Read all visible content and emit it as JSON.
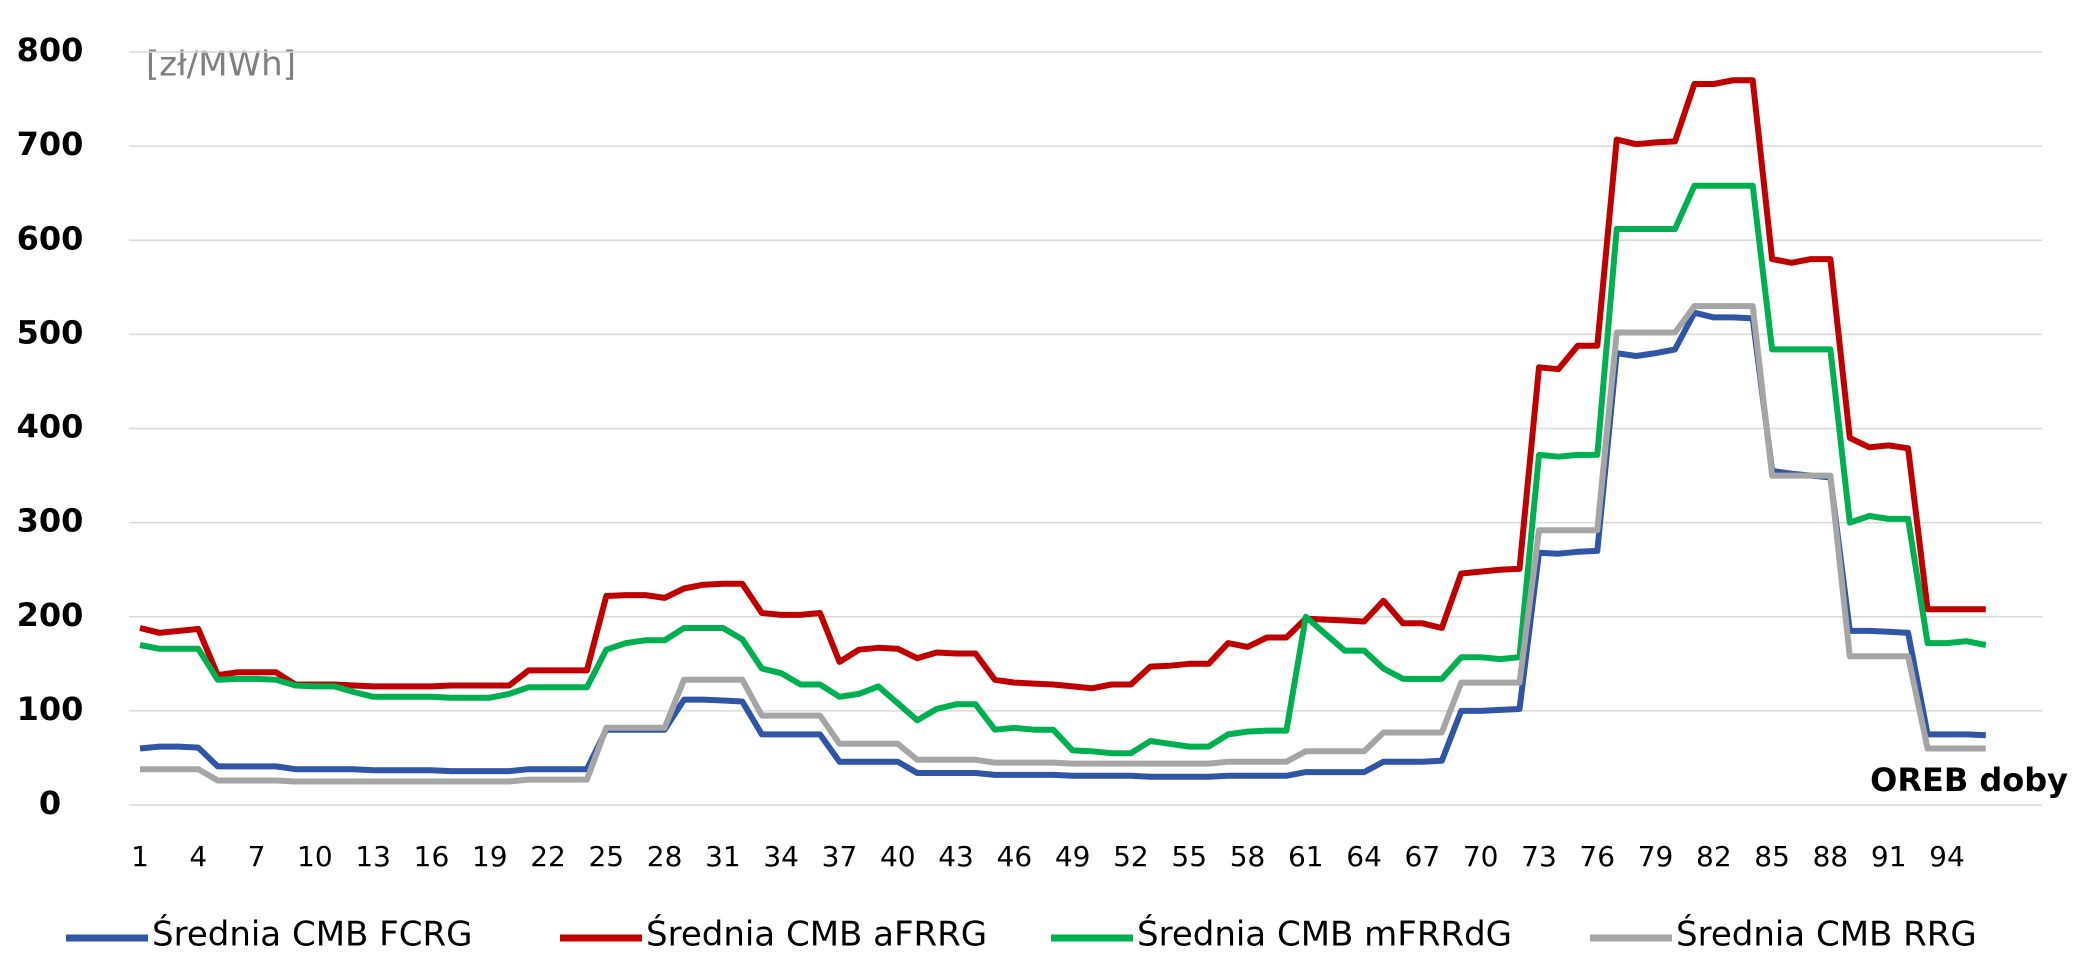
{
  "chart_data": {
    "type": "line",
    "annotations": [
      "[zł/MWh]",
      "OREB doby"
    ],
    "categories": [
      1,
      null,
      null,
      4,
      null,
      null,
      7,
      null,
      null,
      10,
      null,
      null,
      13,
      null,
      null,
      16,
      null,
      null,
      19,
      null,
      null,
      22,
      null,
      null,
      25,
      null,
      null,
      28,
      null,
      null,
      31,
      null,
      null,
      34,
      null,
      null,
      37,
      null,
      null,
      40,
      null,
      null,
      43,
      null,
      null,
      46,
      null,
      null,
      49,
      null,
      null,
      52,
      null,
      null,
      55,
      null,
      null,
      58,
      null,
      null,
      61,
      null,
      null,
      64,
      null,
      null,
      67,
      null,
      null,
      70,
      null,
      null,
      73,
      null,
      null,
      76,
      null,
      null,
      79,
      null,
      null,
      82,
      null,
      null,
      85,
      null,
      null,
      88,
      null,
      null,
      91,
      null,
      null,
      94,
      null,
      null
    ],
    "series": [
      {
        "name": "Średnia CMB FCRG",
        "color": "#2f55a4",
        "values": [
          60,
          62,
          62,
          61,
          41,
          41,
          41,
          41,
          38,
          38,
          38,
          38,
          37,
          37,
          37,
          37,
          36,
          36,
          36,
          36,
          38,
          38,
          38,
          38,
          80,
          80,
          80,
          80,
          112,
          112,
          111,
          110,
          75,
          75,
          75,
          75,
          46,
          46,
          46,
          46,
          34,
          34,
          34,
          34,
          32,
          32,
          32,
          32,
          31,
          31,
          31,
          31,
          30,
          30,
          30,
          30,
          31,
          31,
          31,
          31,
          35,
          35,
          35,
          35,
          46,
          46,
          46,
          47,
          100,
          100,
          101,
          102,
          268,
          267,
          269,
          270,
          480,
          477,
          480,
          484,
          523,
          518,
          518,
          517,
          355,
          352,
          350,
          348,
          185,
          185,
          184,
          183,
          75,
          75,
          75,
          74
        ]
      },
      {
        "name": "Średnia CMB aFRRG",
        "color": "#c00000",
        "values": [
          188,
          183,
          185,
          187,
          138,
          141,
          141,
          141,
          128,
          128,
          128,
          127,
          126,
          126,
          126,
          126,
          127,
          127,
          127,
          127,
          143,
          143,
          143,
          143,
          222,
          223,
          223,
          220,
          230,
          234,
          235,
          235,
          204,
          202,
          202,
          204,
          152,
          165,
          167,
          166,
          156,
          162,
          161,
          161,
          133,
          130,
          129,
          128,
          126,
          124,
          128,
          128,
          147,
          148,
          150,
          150,
          172,
          168,
          178,
          178,
          198,
          197,
          196,
          195,
          217,
          193,
          193,
          188,
          246,
          248,
          250,
          251,
          465,
          463,
          488,
          488,
          707,
          702,
          704,
          705,
          766,
          766,
          770,
          770,
          580,
          576,
          580,
          580,
          390,
          380,
          382,
          379,
          208,
          208,
          208,
          208
        ]
      },
      {
        "name": "Średnia CMB mFRRdG",
        "color": "#00b050",
        "values": [
          170,
          166,
          166,
          166,
          133,
          134,
          134,
          133,
          127,
          126,
          126,
          120,
          115,
          115,
          115,
          115,
          114,
          114,
          114,
          118,
          125,
          125,
          125,
          125,
          165,
          172,
          175,
          175,
          188,
          188,
          188,
          176,
          145,
          140,
          128,
          128,
          115,
          118,
          126,
          108,
          90,
          102,
          107,
          107,
          80,
          82,
          80,
          80,
          58,
          57,
          55,
          55,
          68,
          65,
          62,
          62,
          75,
          78,
          79,
          79,
          200,
          182,
          164,
          164,
          145,
          134,
          134,
          134,
          157,
          157,
          155,
          157,
          372,
          370,
          372,
          372,
          612,
          612,
          612,
          612,
          658,
          658,
          658,
          658,
          484,
          484,
          484,
          484,
          300,
          307,
          304,
          304,
          172,
          172,
          174,
          170
        ]
      },
      {
        "name": "Średnia CMB RRG",
        "color": "#a5a5a5",
        "values": [
          38,
          38,
          38,
          38,
          26,
          26,
          26,
          26,
          25,
          25,
          25,
          25,
          25,
          25,
          25,
          25,
          25,
          25,
          25,
          25,
          27,
          27,
          27,
          27,
          82,
          82,
          82,
          82,
          133,
          133,
          133,
          133,
          95,
          95,
          95,
          95,
          65,
          65,
          65,
          65,
          48,
          48,
          48,
          48,
          45,
          45,
          45,
          45,
          44,
          44,
          44,
          44,
          44,
          44,
          44,
          44,
          46,
          46,
          46,
          46,
          57,
          57,
          57,
          57,
          77,
          77,
          77,
          77,
          130,
          130,
          130,
          130,
          292,
          292,
          292,
          292,
          502,
          502,
          502,
          502,
          530,
          530,
          530,
          530,
          350,
          350,
          350,
          350,
          158,
          158,
          158,
          158,
          60,
          60,
          60,
          60
        ]
      }
    ],
    "ylim": [
      0,
      800
    ],
    "yticks": [
      0,
      100,
      200,
      300,
      400,
      500,
      600,
      700,
      800
    ],
    "grid": true
  }
}
